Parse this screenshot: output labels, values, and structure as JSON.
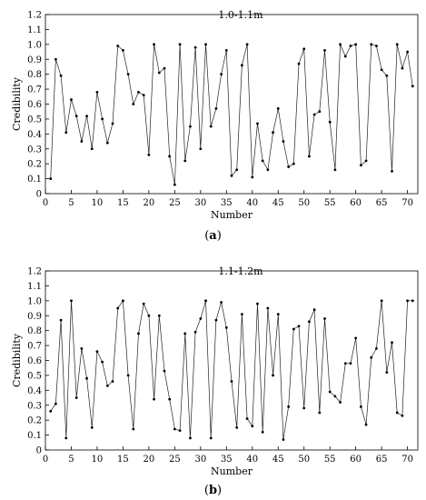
{
  "captions": {
    "a": {
      "open": "(",
      "letter": "a",
      "close": ")"
    },
    "b": {
      "open": "(",
      "letter": "b",
      "close": ")"
    }
  },
  "chart_data": [
    {
      "type": "line",
      "title": "1.0-1.1m",
      "xlabel": "Number",
      "ylabel": "Credibility",
      "xlim": [
        0,
        72
      ],
      "ylim": [
        0,
        1.2
      ],
      "xticks": [
        0,
        5,
        10,
        15,
        20,
        25,
        30,
        35,
        40,
        45,
        50,
        55,
        60,
        65,
        70
      ],
      "yticks": [
        0,
        0.1,
        0.2,
        0.3,
        0.4,
        0.5,
        0.6,
        0.7,
        0.8,
        0.9,
        1.0,
        1.1,
        1.2
      ],
      "ytick_labels": [
        "0",
        "0.1",
        "0.2",
        "0.3",
        "0.4",
        "0.5",
        "0.6",
        "0.7",
        "0.8",
        "0.9",
        "1.0",
        "1.1",
        "1.2"
      ],
      "grid": false,
      "series": [
        {
          "x": [
            1,
            2,
            3,
            4,
            5,
            6,
            7,
            8,
            9,
            10,
            11,
            12,
            13,
            14,
            15,
            16,
            17,
            18,
            19,
            20,
            21,
            22,
            23,
            24,
            25,
            26,
            27,
            28,
            29,
            30,
            31,
            32,
            33,
            34,
            35,
            36,
            37,
            38,
            39,
            40,
            41,
            42,
            43,
            44,
            45,
            46,
            47,
            48,
            49,
            50,
            51,
            52,
            53,
            54,
            55,
            56,
            57,
            58,
            59,
            60,
            61,
            62,
            63,
            64,
            65,
            66,
            67,
            68,
            69,
            70,
            71
          ],
          "values": [
            0.1,
            0.9,
            0.79,
            0.41,
            0.63,
            0.52,
            0.35,
            0.52,
            0.3,
            0.68,
            0.5,
            0.34,
            0.47,
            0.99,
            0.96,
            0.8,
            0.6,
            0.68,
            0.66,
            0.26,
            1.0,
            0.81,
            0.84,
            0.25,
            0.06,
            1.0,
            0.22,
            0.45,
            0.98,
            0.3,
            1.0,
            0.45,
            0.57,
            0.8,
            0.96,
            0.12,
            0.16,
            0.86,
            1.0,
            0.11,
            0.47,
            0.22,
            0.16,
            0.41,
            0.57,
            0.35,
            0.18,
            0.2,
            0.87,
            0.97,
            0.25,
            0.53,
            0.55,
            0.96,
            0.48,
            0.16,
            1.0,
            0.92,
            0.99,
            1.0,
            0.19,
            0.22,
            1.0,
            0.99,
            0.83,
            0.79,
            0.15,
            1.0,
            0.84,
            0.95,
            0.72
          ]
        }
      ]
    },
    {
      "type": "line",
      "title": "1.1-1.2m",
      "xlabel": "Number",
      "ylabel": "Credibility",
      "xlim": [
        0,
        72
      ],
      "ylim": [
        0,
        1.2
      ],
      "xticks": [
        0,
        5,
        10,
        15,
        20,
        25,
        30,
        35,
        40,
        45,
        50,
        55,
        60,
        65,
        70
      ],
      "yticks": [
        0,
        0.1,
        0.2,
        0.3,
        0.4,
        0.5,
        0.6,
        0.7,
        0.8,
        0.9,
        1.0,
        1.1,
        1.2
      ],
      "ytick_labels": [
        "0",
        "0.1",
        "0.2",
        "0.3",
        "0.4",
        "0.5",
        "0.6",
        "0.7",
        "0.8",
        "0.9",
        "1.0",
        "1.1",
        "1.2"
      ],
      "grid": false,
      "series": [
        {
          "x": [
            1,
            2,
            3,
            4,
            5,
            6,
            7,
            8,
            9,
            10,
            11,
            12,
            13,
            14,
            15,
            16,
            17,
            18,
            19,
            20,
            21,
            22,
            23,
            24,
            25,
            26,
            27,
            28,
            29,
            30,
            31,
            32,
            33,
            34,
            35,
            36,
            37,
            38,
            39,
            40,
            41,
            42,
            43,
            44,
            45,
            46,
            47,
            48,
            49,
            50,
            51,
            52,
            53,
            54,
            55,
            56,
            57,
            58,
            59,
            60,
            61,
            62,
            63,
            64,
            65,
            66,
            67,
            68,
            69,
            70,
            71
          ],
          "values": [
            0.26,
            0.31,
            0.87,
            0.08,
            1.0,
            0.35,
            0.68,
            0.48,
            0.15,
            0.66,
            0.59,
            0.43,
            0.46,
            0.95,
            1.0,
            0.5,
            0.14,
            0.78,
            0.98,
            0.9,
            0.34,
            0.9,
            0.53,
            0.34,
            0.14,
            0.13,
            0.78,
            0.08,
            0.79,
            0.88,
            1.0,
            0.08,
            0.87,
            0.99,
            0.82,
            0.46,
            0.15,
            0.91,
            0.21,
            0.16,
            0.98,
            0.12,
            0.95,
            0.5,
            0.91,
            0.07,
            0.29,
            0.81,
            0.83,
            0.28,
            0.86,
            0.94,
            0.25,
            0.88,
            0.39,
            0.36,
            0.32,
            0.58,
            0.58,
            0.75,
            0.29,
            0.17,
            0.62,
            0.68,
            1.0,
            0.52,
            0.72,
            0.25,
            0.23,
            1.0,
            1.0
          ]
        }
      ]
    }
  ]
}
